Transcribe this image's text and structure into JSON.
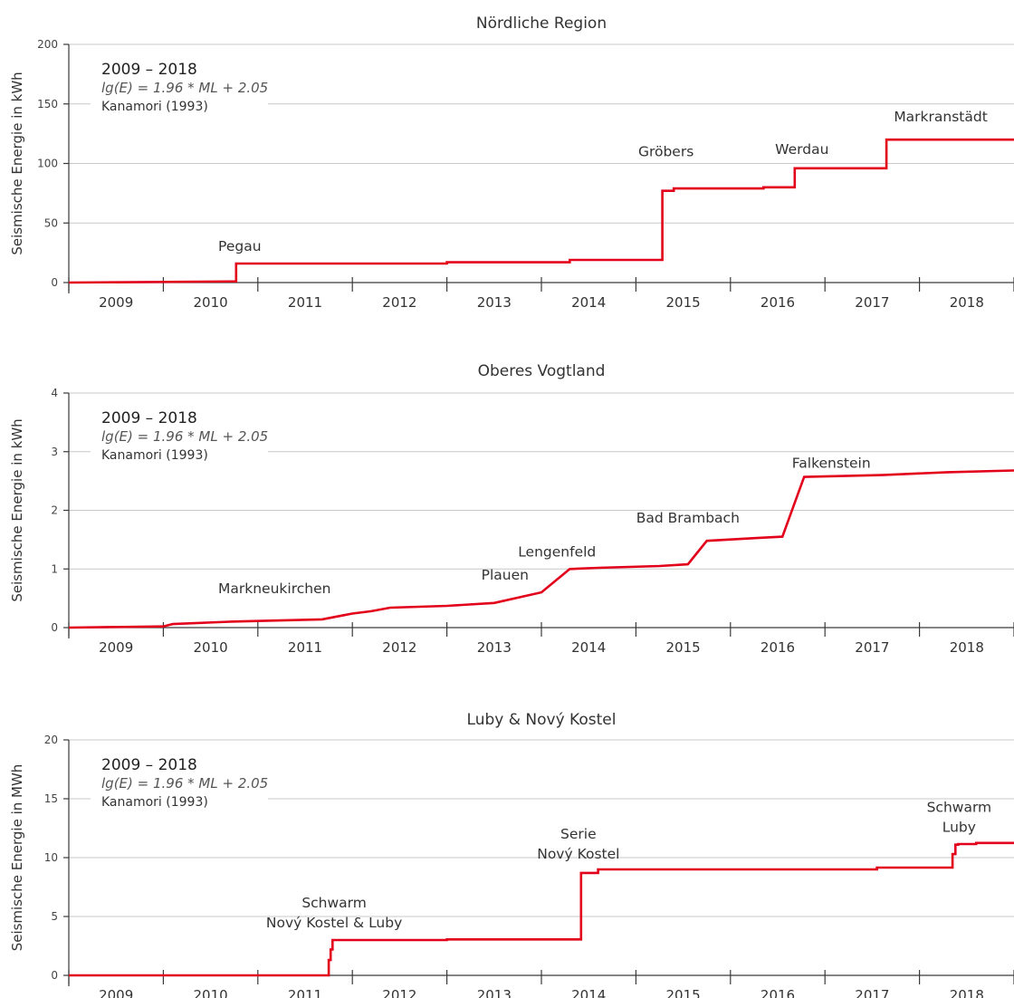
{
  "chart_data": [
    {
      "type": "line",
      "step": true,
      "title": "Nördliche Region",
      "ylabel": "Seismische Energie in kWh",
      "xlabel": "",
      "xlim": [
        2009,
        2019
      ],
      "ylim": [
        0,
        200
      ],
      "yticks": [
        0,
        50,
        100,
        150,
        200
      ],
      "categories": [
        "2009",
        "2010",
        "2011",
        "2012",
        "2013",
        "2014",
        "2015",
        "2016",
        "2017",
        "2018"
      ],
      "grid": true,
      "color": "#e2001a",
      "info": {
        "period": "2009 – 2018",
        "formula": "lg(E) = 1.96 * ML + 2.05",
        "reference": "Kanamori (1993)"
      },
      "series": [
        {
          "x": [
            2009.0,
            2010.77,
            2010.77,
            2013.0,
            2013.0,
            2014.3,
            2014.3,
            2015.28,
            2015.28,
            2015.4,
            2015.4,
            2016.35,
            2016.35,
            2016.68,
            2016.68,
            2017.35,
            2017.35,
            2017.65,
            2017.65,
            2019.0
          ],
          "y": [
            0,
            1,
            16,
            16,
            17,
            17,
            19,
            19,
            77,
            77,
            79,
            79,
            80,
            80,
            96,
            96,
            96,
            96,
            120,
            120
          ]
        }
      ],
      "annotations": [
        {
          "text": "Pegau",
          "x": 2010.77,
          "y": 16
        },
        {
          "text": "Gröbers",
          "x": 2015.28,
          "y": 77
        },
        {
          "text": "Werdau",
          "x": 2016.68,
          "y": 96
        },
        {
          "text": "Markranstädt",
          "x": 2017.65,
          "y": 120
        }
      ]
    },
    {
      "type": "line",
      "step": true,
      "title": "Oberes Vogtland",
      "ylabel": "Seismische Energie in kWh",
      "xlabel": "",
      "xlim": [
        2009,
        2019
      ],
      "ylim": [
        0,
        4
      ],
      "yticks": [
        0,
        1,
        2,
        3,
        4
      ],
      "categories": [
        "2009",
        "2010",
        "2011",
        "2012",
        "2013",
        "2014",
        "2015",
        "2016",
        "2017",
        "2018"
      ],
      "grid": true,
      "color": "#e2001a",
      "info": {
        "period": "2009 – 2018",
        "formula": "lg(E) = 1.96 * ML + 2.05",
        "reference": "Kanamori (1993)"
      },
      "series": [
        {
          "x": [
            2009.0,
            2010.0,
            2010.0,
            2010.05,
            2010.05,
            2010.1,
            2010.1,
            2010.7,
            2010.7,
            2011.68,
            2011.68,
            2012.0,
            2012.0,
            2012.2,
            2012.2,
            2012.4,
            2012.4,
            2013.0,
            2013.0,
            2013.5,
            2013.5,
            2014.0,
            2014.0,
            2014.3,
            2014.3,
            2014.6,
            2014.6,
            2015.25,
            2015.25,
            2015.55,
            2015.55,
            2015.75,
            2015.75,
            2016.3,
            2016.3,
            2016.55,
            2016.55,
            2016.78,
            2016.78,
            2017.6,
            2017.6,
            2018.3,
            2018.3,
            2019.0
          ],
          "y": [
            0,
            0.02,
            0.02,
            0.04,
            0.04,
            0.06,
            0.06,
            0.1,
            0.1,
            0.14,
            0.14,
            0.24,
            0.24,
            0.28,
            0.28,
            0.34,
            0.34,
            0.37,
            0.37,
            0.42,
            0.42,
            0.6,
            0.6,
            1.0,
            1.0,
            1.02,
            1.02,
            1.05,
            1.05,
            1.08,
            1.08,
            1.48,
            1.48,
            1.53,
            1.53,
            1.55,
            1.55,
            2.57,
            2.57,
            2.6,
            2.6,
            2.65,
            2.65,
            2.68
          ]
        }
      ],
      "annotations": [
        {
          "text": "Markneukirchen",
          "x": 2011.1,
          "y": 0.28
        },
        {
          "text": "Plauen",
          "x": 2013.5,
          "y": 0.6
        },
        {
          "text": "Lengenfeld",
          "x": 2014.05,
          "y": 1.0
        },
        {
          "text": "Bad Brambach",
          "x": 2015.55,
          "y": 1.48
        },
        {
          "text": "Falkenstein",
          "x": 2016.78,
          "y": 2.57
        }
      ]
    },
    {
      "type": "line",
      "step": true,
      "title": "Luby & Nový Kostel",
      "ylabel": "Seismische Energie in MWh",
      "xlabel": "",
      "xlim": [
        2009,
        2019
      ],
      "ylim": [
        0,
        20
      ],
      "yticks": [
        0,
        5,
        10,
        15,
        20
      ],
      "categories": [
        "2009",
        "2010",
        "2011",
        "2012",
        "2013",
        "2014",
        "2015",
        "2016",
        "2017",
        "2018"
      ],
      "grid": true,
      "color": "#e2001a",
      "info": {
        "period": "2009 – 2018",
        "formula": "lg(E) = 1.96 * ML + 2.05",
        "reference": "Kanamori (1993)"
      },
      "series": [
        {
          "x": [
            2009.0,
            2011.75,
            2011.75,
            2011.77,
            2011.77,
            2011.79,
            2011.79,
            2013.0,
            2013.0,
            2014.42,
            2014.42,
            2014.45,
            2014.45,
            2014.6,
            2014.6,
            2014.75,
            2014.75,
            2017.55,
            2017.55,
            2018.35,
            2018.35,
            2018.38,
            2018.38,
            2018.41,
            2018.41,
            2018.6,
            2018.6,
            2019.0
          ],
          "y": [
            0,
            0,
            1.3,
            1.3,
            2.2,
            2.2,
            3.0,
            3.0,
            3.05,
            3.05,
            8.7,
            8.7,
            8.7,
            8.7,
            9.0,
            9.0,
            9.0,
            9.0,
            9.15,
            9.15,
            10.3,
            10.3,
            11.1,
            11.1,
            11.15,
            11.15,
            11.25,
            11.25
          ]
        }
      ],
      "annotations": [
        {
          "text": "Schwarm\nNový Kostel & Luby",
          "x": 2011.75,
          "y": 3.0
        },
        {
          "text": "Serie\nNový Kostel",
          "x": 2014.42,
          "y": 8.7
        },
        {
          "text": "Schwarm\nLuby",
          "x": 2018.4,
          "y": 11.1
        }
      ]
    }
  ]
}
